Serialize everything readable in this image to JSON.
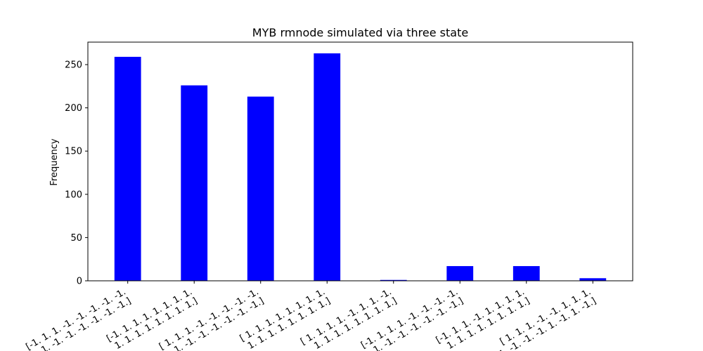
{
  "chart_data": {
    "type": "bar",
    "title": "MYB rmnode simulated via three state",
    "xlabel": "",
    "ylabel": "Frequency",
    "ylim": [
      0,
      276
    ],
    "yticks": [
      0,
      50,
      100,
      150,
      200,
      250
    ],
    "grid": false,
    "bar_color": "#0000ff",
    "categories": [
      "[-1.  1.  1. -1. -1. -1. -1. -1.\n -1. -1. -1. -1. -1. -1. -1. -1.]",
      "[-1.  1.  1.  1.  1.  1.  1.  1.\n  1.  1.  1.  1.  1.  1.  1.  1.]",
      "[ 1.  1.  1. -1. -1. -1. -1. -1.\n -1. -1. -1. -1. -1. -1. -1. -1.]",
      "[ 1.  1.  1.  1.  1.  1.  1.  1.\n  1.  1.  1.  1.  1.  1.  1.  1.]",
      "[ 1.  1.  1.  1. -1.  1.  1. -1.\n  1.  1.  1.  1.  1.  1.  1.  1.]",
      "[-1.  1.  1.  1. -1. -1. -1. -1.\n -1. -1. -1. -1. -1. -1. -1. -1.]",
      "[-1.  1.  1. -1.  1.  1.  1.  1.\n  1.  1.  1.  1.  1.  1.  1.  1.]",
      "[ 1.  1.  1. -1. -1.  1.  1.  1.\n -1. -1. -1. -1.  1. -1.  1. -1.]"
    ],
    "values": [
      259,
      226,
      213,
      263,
      1,
      17,
      17,
      3
    ]
  }
}
